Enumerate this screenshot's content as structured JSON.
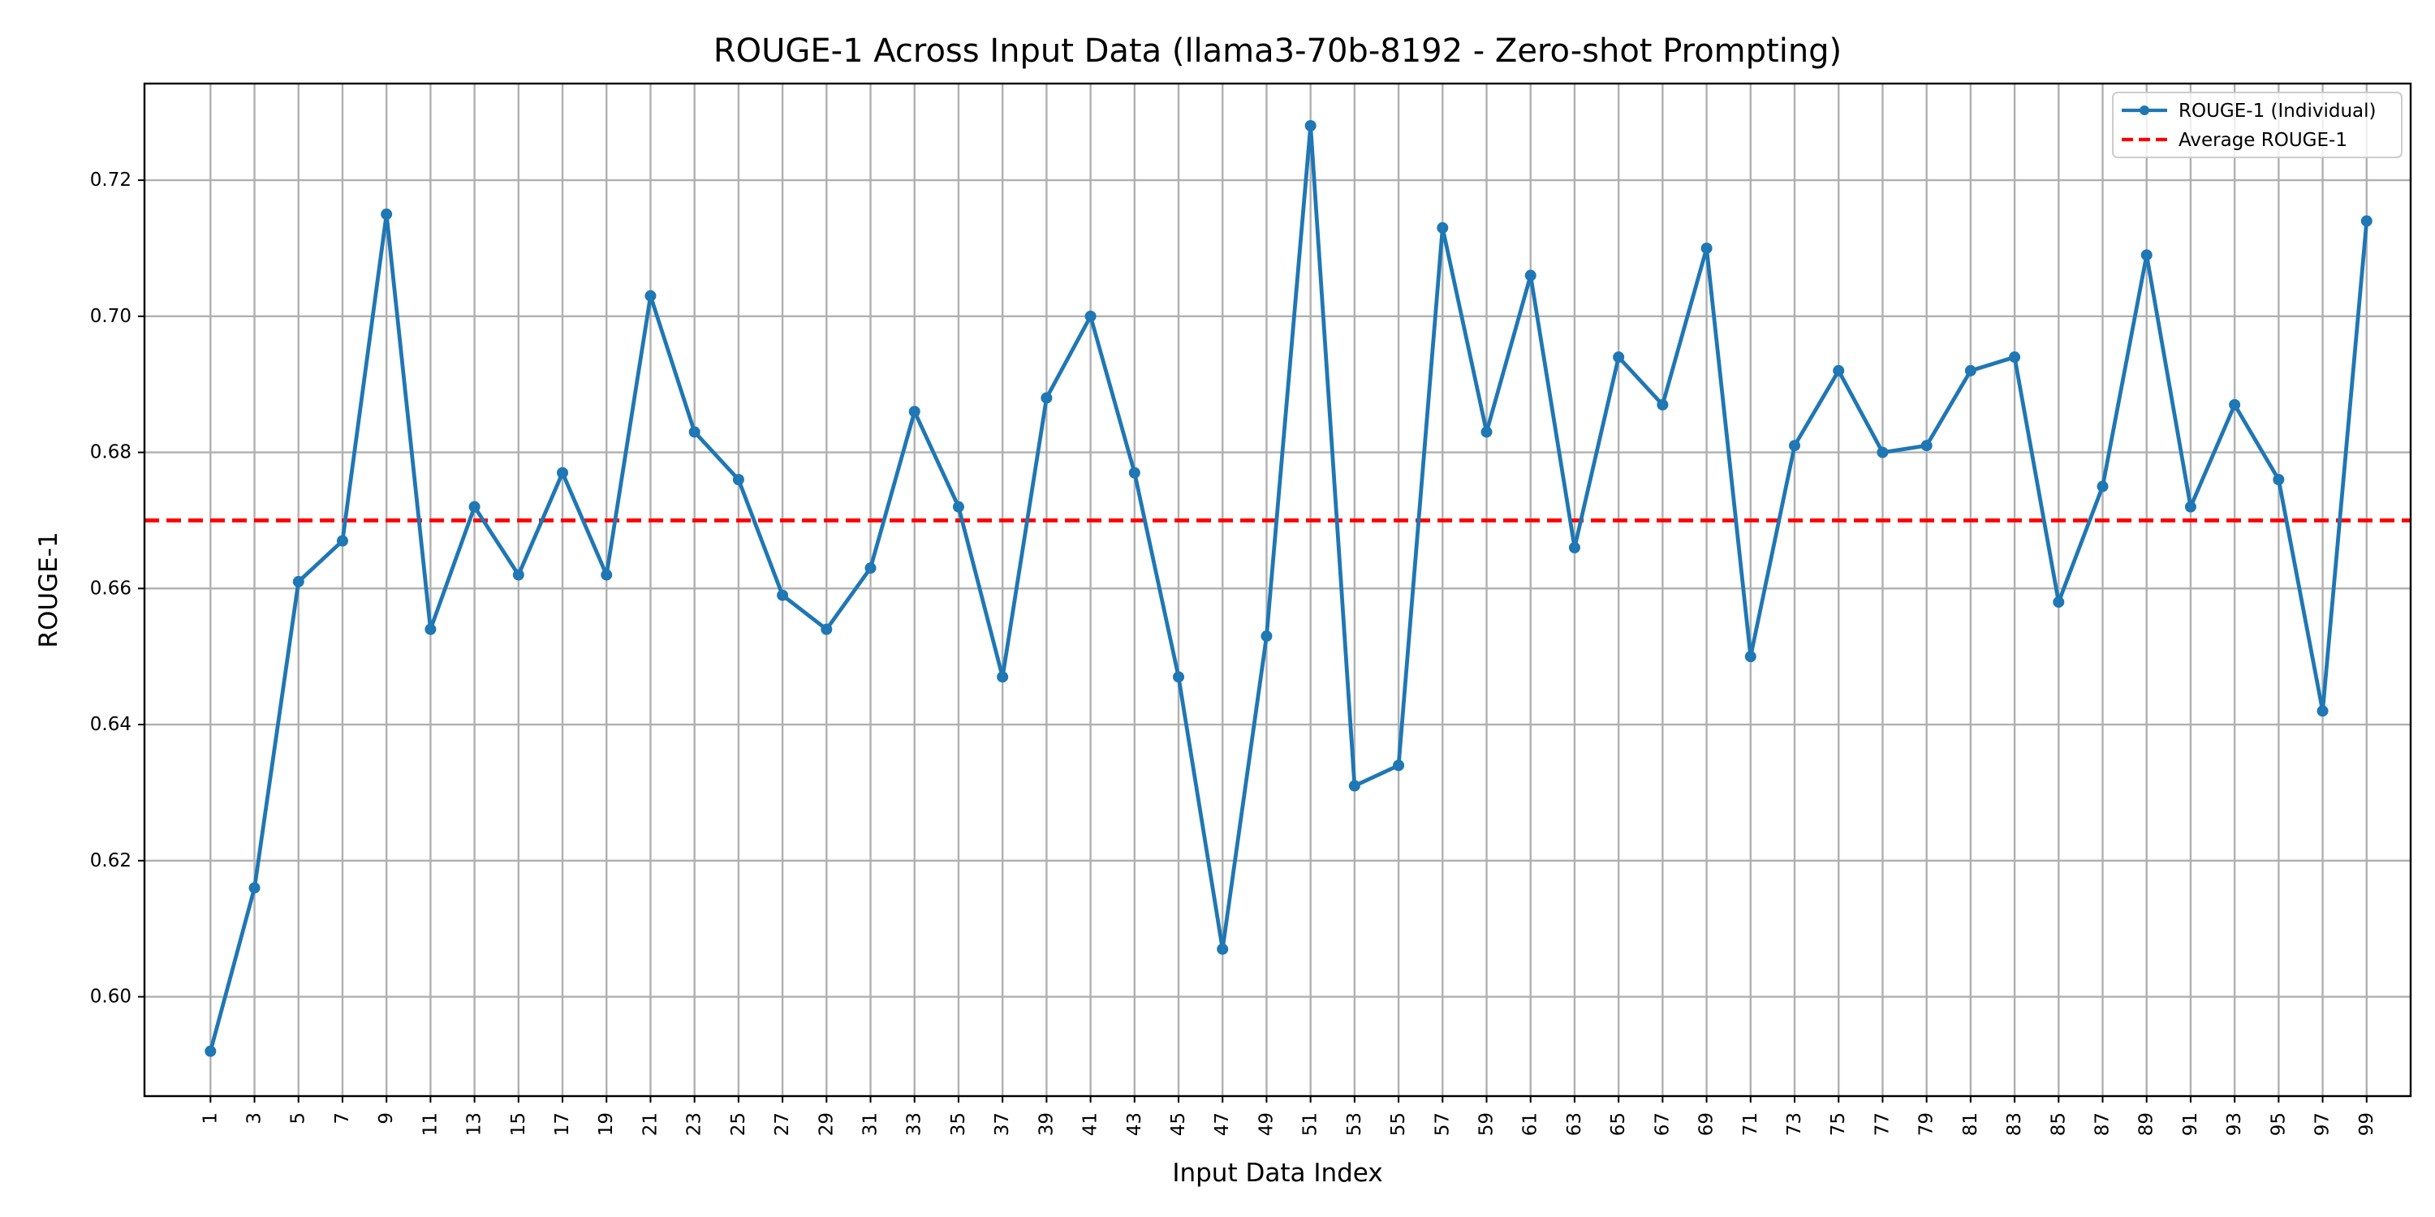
{
  "chart_data": {
    "type": "line",
    "title": "ROUGE-1 Across Input Data (llama3-70b-8192 - Zero-shot Prompting)",
    "xlabel": "Input Data Index",
    "ylabel": "ROUGE-1",
    "ylim": [
      0.5854,
      0.7342
    ],
    "xlim": [
      -2,
      101
    ],
    "yticks": [
      "0.60",
      "0.62",
      "0.64",
      "0.66",
      "0.68",
      "0.70",
      "0.72"
    ],
    "grid": true,
    "legend_position": "top-right",
    "series": [
      {
        "name": "ROUGE-1 (Individual)",
        "color": "#1f77b4",
        "style": "solid-line-with-dot-markers",
        "x": [
          1,
          3,
          5,
          7,
          9,
          11,
          13,
          15,
          17,
          19,
          21,
          23,
          25,
          27,
          29,
          31,
          33,
          35,
          37,
          39,
          41,
          43,
          45,
          47,
          49,
          51,
          53,
          55,
          57,
          59,
          61,
          63,
          65,
          67,
          69,
          71,
          73,
          75,
          77,
          79,
          81,
          83,
          85,
          87,
          89,
          91,
          93,
          95,
          97,
          99
        ],
        "values": [
          0.592,
          0.616,
          0.661,
          0.667,
          0.715,
          0.654,
          0.672,
          0.662,
          0.677,
          0.662,
          0.703,
          0.683,
          0.676,
          0.659,
          0.654,
          0.663,
          0.686,
          0.672,
          0.647,
          0.688,
          0.7,
          0.677,
          0.647,
          0.607,
          0.653,
          0.728,
          0.631,
          0.634,
          0.713,
          0.683,
          0.706,
          0.666,
          0.694,
          0.687,
          0.71,
          0.65,
          0.681,
          0.692,
          0.68,
          0.681,
          0.692,
          0.694,
          0.658,
          0.675,
          0.709,
          0.672,
          0.687,
          0.676,
          0.642,
          0.714
        ]
      },
      {
        "name": "Average ROUGE-1",
        "color": "#ff0000",
        "style": "dashed-horizontal",
        "value": 0.67
      }
    ]
  }
}
